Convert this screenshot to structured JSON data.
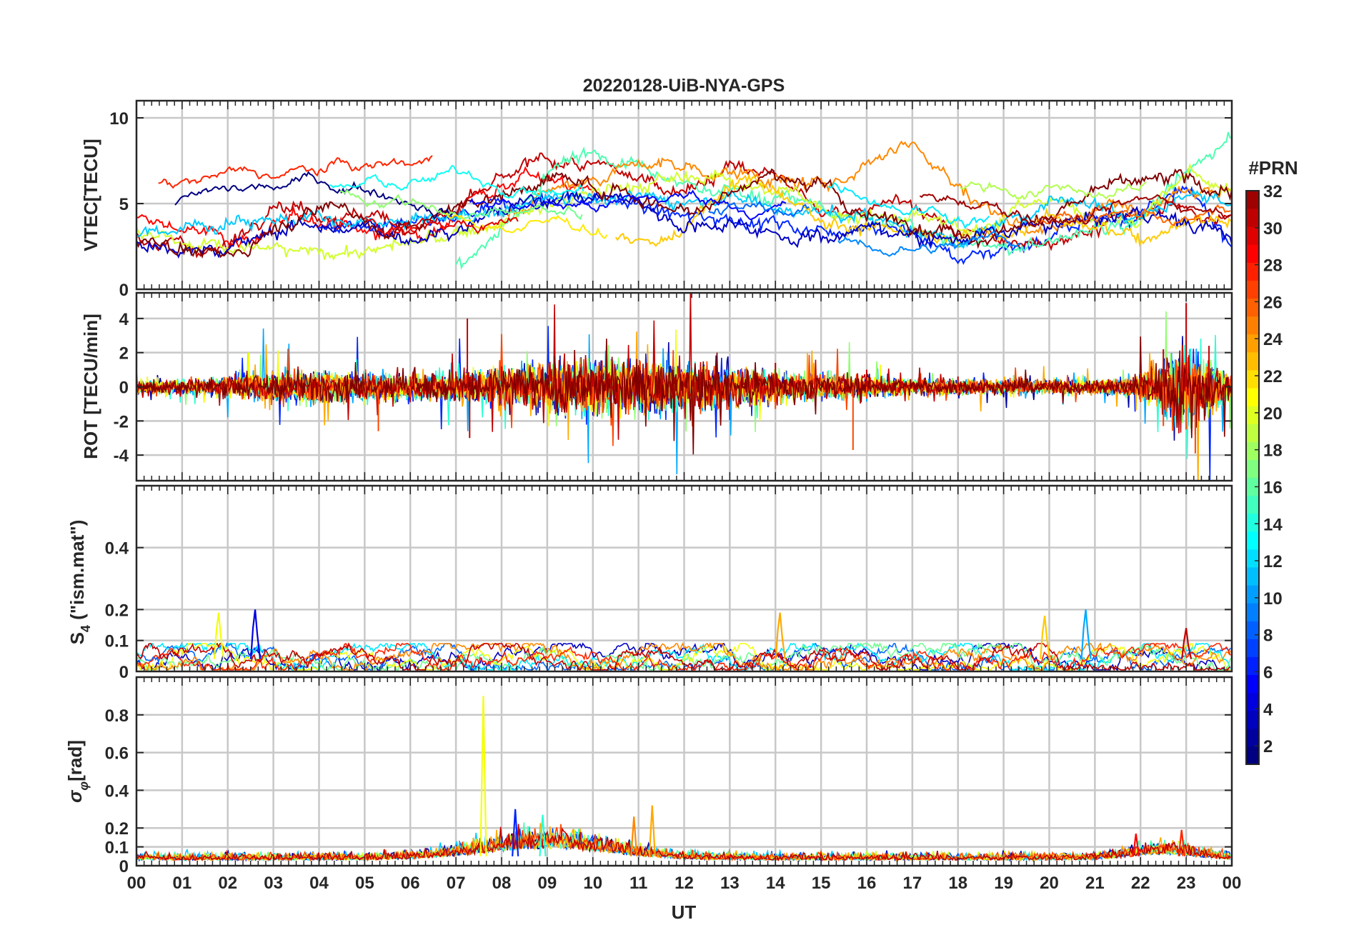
{
  "figure_title": "20220128-UiB-NYA-GPS",
  "x_axis": {
    "label": "UT",
    "ticks": [
      "00",
      "01",
      "02",
      "03",
      "04",
      "05",
      "06",
      "07",
      "08",
      "09",
      "10",
      "11",
      "12",
      "13",
      "14",
      "15",
      "16",
      "17",
      "18",
      "19",
      "20",
      "21",
      "22",
      "23",
      "00"
    ],
    "range_hours": [
      0,
      24
    ]
  },
  "colorbar": {
    "title": "#PRN",
    "ticks": [
      "2",
      "4",
      "6",
      "8",
      "10",
      "12",
      "14",
      "16",
      "18",
      "20",
      "22",
      "24",
      "26",
      "28",
      "30",
      "32"
    ],
    "range": [
      1,
      32
    ],
    "colormap": "jet"
  },
  "chart_data": [
    {
      "type": "line",
      "panel": "vtec",
      "ylabel": "VTEC[TECU]",
      "ylim": [
        0,
        11
      ],
      "yticks": [
        "0",
        "5",
        "10"
      ],
      "grid": true,
      "series": [
        {
          "prn": 28,
          "x": [
            0,
            0.5,
            1,
            1.5,
            2,
            2.5,
            3,
            3.5,
            4,
            4.5,
            5,
            5.5,
            6,
            6.5,
            7,
            7.5,
            8,
            8.5,
            9,
            9.5,
            10
          ],
          "y": [
            4.0,
            3.8,
            3.6,
            3.2,
            2.9,
            3.1,
            3.5,
            3.9,
            4.2,
            3.9,
            3.4,
            3.1,
            3.4,
            3.9,
            4.6,
            5.6,
            6.2,
            7.0,
            6.4,
            5.9,
            5.8
          ]
        },
        {
          "prn": 6,
          "x": [
            4,
            5,
            6,
            7,
            8,
            9,
            10,
            11,
            12,
            13,
            14,
            15,
            16,
            17,
            18,
            19,
            20,
            21,
            22,
            23,
            24
          ],
          "y": [
            3.8,
            3.6,
            3.4,
            3.9,
            4.8,
            5.5,
            5.3,
            4.9,
            4.0,
            4.4,
            3.8,
            3.5,
            4.0,
            3.4,
            1.8,
            2.5,
            3.1,
            3.9,
            4.6,
            5.4,
            3.0
          ]
        },
        {
          "prn": 30,
          "x": [
            0,
            1,
            2,
            3,
            4,
            5,
            6,
            7,
            8,
            9,
            10,
            11,
            12,
            13,
            14,
            15,
            16,
            17,
            18,
            19,
            20,
            21,
            22,
            23,
            24
          ],
          "y": [
            3.0,
            2.5,
            2.4,
            5.4,
            4.6,
            4.2,
            3.6,
            4.5,
            6.2,
            7.6,
            7.0,
            6.4,
            6.0,
            7.1,
            6.6,
            4.2,
            5.0,
            4.8,
            3.4,
            2.7,
            3.0,
            3.6,
            4.2,
            4.9,
            4.0
          ]
        },
        {
          "prn": 15,
          "x": [
            7,
            7.5,
            8,
            8.5,
            9,
            9.5,
            10,
            10.5,
            11,
            11.5,
            12,
            13,
            14,
            15,
            16,
            17,
            18,
            19,
            20,
            21,
            22,
            23,
            24
          ],
          "y": [
            1.5,
            2.2,
            3.5,
            5.0,
            6.8,
            7.9,
            8.2,
            7.4,
            7.0,
            6.2,
            6.0,
            5.8,
            5.4,
            4.6,
            4.0,
            3.7,
            2.6,
            2.3,
            2.7,
            3.5,
            4.4,
            6.3,
            9.4
          ]
        },
        {
          "prn": 24,
          "x": [
            8,
            9,
            10,
            11,
            12,
            13,
            14,
            15,
            16,
            17,
            18,
            19,
            20,
            21,
            22,
            23,
            24
          ],
          "y": [
            4.4,
            5.5,
            6.6,
            7.3,
            7.1,
            6.8,
            6.4,
            5.8,
            7.5,
            8.8,
            5.9,
            4.2,
            3.6,
            4.5,
            5.1,
            6.2,
            5.8
          ]
        },
        {
          "prn": 19,
          "x": [
            0,
            0.5,
            1,
            1.5,
            2,
            2.5,
            3,
            3.5,
            5,
            6,
            7,
            8,
            9,
            10,
            11,
            12,
            13,
            14,
            15,
            16,
            17,
            18,
            19,
            20,
            21,
            22,
            23,
            24
          ],
          "y": [
            3.4,
            3.1,
            2.8,
            2.6,
            2.4,
            2.2,
            2.3,
            2.0,
            2.3,
            2.6,
            3.1,
            3.9,
            4.8,
            5.6,
            6.0,
            6.4,
            6.7,
            5.7,
            4.8,
            4.3,
            4.0,
            3.5,
            4.3,
            5.3,
            4.4,
            4.0,
            6.8,
            5.6
          ]
        },
        {
          "prn": 11,
          "x": [
            0,
            1,
            2,
            3,
            4,
            5,
            6,
            7,
            8,
            9,
            10,
            11,
            12,
            13,
            14,
            15,
            16,
            17,
            18,
            19,
            20,
            21,
            22,
            23,
            24
          ],
          "y": [
            3.3,
            3.6,
            4.1,
            4.3,
            3.9,
            3.6,
            3.8,
            4.2,
            4.6,
            5.4,
            5.6,
            5.2,
            5.3,
            5.6,
            4.9,
            4.4,
            4.1,
            3.6,
            3.0,
            3.6,
            5.5,
            5.1,
            4.6,
            5.6,
            5.0
          ]
        },
        {
          "prn": 22,
          "x": [
            10.5,
            11,
            12,
            13,
            14,
            15,
            16,
            17,
            18,
            19,
            20,
            21,
            22,
            23,
            24
          ],
          "y": [
            2.8,
            2.7,
            3.0,
            6.7,
            6.2,
            4.2,
            3.7,
            3.0,
            2.7,
            3.2,
            4.4,
            3.4,
            3.0,
            4.3,
            4.1
          ]
        },
        {
          "prn": 3,
          "x": [
            0,
            1,
            2,
            3,
            4,
            5,
            6,
            7,
            8,
            9,
            10,
            11,
            12,
            13,
            14,
            15,
            16,
            17,
            18,
            19,
            20,
            21,
            22,
            23,
            24
          ],
          "y": [
            2.8,
            2.2,
            2.4,
            3.4,
            3.9,
            3.4,
            3.1,
            3.7,
            4.7,
            5.3,
            5.6,
            5.1,
            3.8,
            3.9,
            3.5,
            3.0,
            3.6,
            3.2,
            3.0,
            3.3,
            3.6,
            4.1,
            4.6,
            3.9,
            3.0
          ]
        },
        {
          "prn": 32,
          "x": [
            0,
            0.5,
            1,
            1.5,
            2,
            2.5,
            3,
            3.5,
            4,
            4.5,
            5,
            5.5,
            6,
            7,
            8,
            9,
            10,
            11,
            12,
            13,
            14,
            15,
            16,
            17,
            18,
            19,
            20,
            21,
            22,
            23,
            24
          ],
          "y": [
            2.8,
            2.7,
            2.5,
            2.2,
            1.9,
            2.4,
            3.6,
            4.4,
            4.9,
            5.2,
            3.9,
            3.4,
            3.6,
            4.9,
            5.5,
            6.6,
            6.1,
            5.4,
            4.6,
            5.8,
            6.8,
            5.8,
            4.3,
            3.9,
            3.3,
            3.5,
            4.5,
            5.6,
            6.1,
            6.3,
            5.6
          ]
        }
      ]
    },
    {
      "type": "line",
      "panel": "rot",
      "ylabel": "ROT [TECU/min]",
      "ylim": [
        -5.5,
        5.5
      ],
      "yticks": [
        "-4",
        "-2",
        "0",
        "2",
        "4"
      ],
      "grid": true,
      "series": [
        {
          "prn": 30,
          "x": [
            0,
            2,
            4,
            6,
            7,
            7.25,
            7.3,
            8,
            10,
            12,
            14,
            16,
            18,
            20,
            22,
            22.5,
            23,
            23.2,
            23.5,
            24
          ],
          "y": [
            0.3,
            0.5,
            0.7,
            0.6,
            0.9,
            4.0,
            -3.0,
            1.2,
            0.9,
            0.8,
            1.4,
            1.0,
            0.6,
            0.4,
            0.8,
            2.2,
            4.9,
            -2.8,
            2.4,
            1.5
          ]
        },
        {
          "prn": 26,
          "x": [
            0,
            2,
            4,
            5.3,
            6,
            8,
            10,
            12,
            14,
            15.7,
            16,
            18,
            20,
            22,
            22.5,
            23,
            23.2,
            24
          ],
          "y": [
            -0.3,
            -0.5,
            -0.8,
            -2.6,
            -0.6,
            -1.1,
            -1.0,
            -0.9,
            -1.3,
            -3.7,
            -0.7,
            -0.5,
            -0.4,
            -0.9,
            -2.3,
            -2.5,
            -3.9,
            -1.5
          ]
        }
      ]
    },
    {
      "type": "line",
      "panel": "s4",
      "ylabel": "S4 (\"ism.mat\")",
      "ylim": [
        0,
        0.6
      ],
      "yticks": [
        "0",
        "0.1",
        "0.2",
        "0.4"
      ],
      "grid": true,
      "series": [
        {
          "prn": 20,
          "x": [
            1.8
          ],
          "y": [
            0.19
          ]
        },
        {
          "prn": 4,
          "x": [
            2.6
          ],
          "y": [
            0.2
          ]
        },
        {
          "prn": 23,
          "x": [
            14.1
          ],
          "y": [
            0.19
          ]
        },
        {
          "prn": 22,
          "x": [
            19.9
          ],
          "y": [
            0.18
          ]
        },
        {
          "prn": 10,
          "x": [
            20.8
          ],
          "y": [
            0.2
          ]
        },
        {
          "prn": 30,
          "x": [
            23.0
          ],
          "y": [
            0.14
          ]
        }
      ]
    },
    {
      "type": "line",
      "panel": "sigma_phi",
      "ylabel": "σφ[rad]",
      "ylim": [
        0,
        1.0
      ],
      "yticks": [
        "0",
        "0.1",
        "0.2",
        "0.4",
        "0.6",
        "0.8"
      ],
      "grid": true,
      "series": [
        {
          "prn": 20,
          "x": [
            7.6
          ],
          "y": [
            0.9
          ]
        },
        {
          "prn": 23,
          "x": [
            11.3
          ],
          "y": [
            0.32
          ]
        },
        {
          "prn": 6,
          "x": [
            8.3
          ],
          "y": [
            0.3
          ]
        },
        {
          "prn": 14,
          "x": [
            8.9
          ],
          "y": [
            0.27
          ]
        },
        {
          "prn": 24,
          "x": [
            10.9
          ],
          "y": [
            0.26
          ]
        },
        {
          "prn": 28,
          "x": [
            21.9
          ],
          "y": [
            0.17
          ]
        },
        {
          "prn": 27,
          "x": [
            22.9
          ],
          "y": [
            0.19
          ]
        }
      ]
    }
  ]
}
